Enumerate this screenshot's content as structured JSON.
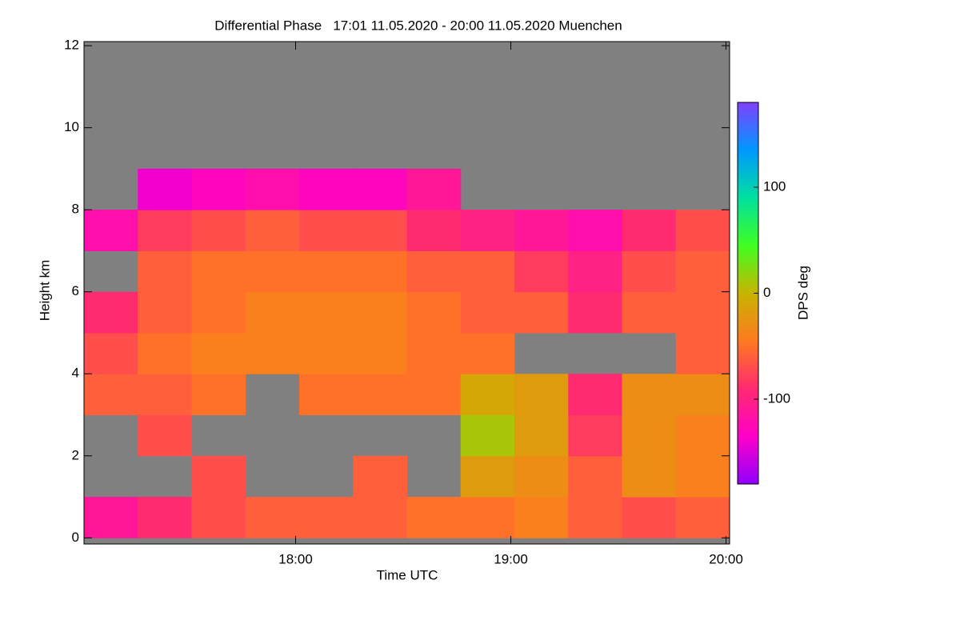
{
  "chart_data": {
    "type": "heatmap",
    "title": "Differential Phase   17:01 11.05.2020 - 20:00 11.05.2020 Muenchen",
    "xlabel": "Time UTC",
    "ylabel": "Height km",
    "colorbar_label": "DPS deg",
    "x": [
      1021,
      1036,
      1051,
      1066,
      1081,
      1096,
      1111,
      1126,
      1141,
      1156,
      1171,
      1186
    ],
    "y": [
      0,
      1,
      2,
      3,
      4,
      5,
      6,
      7,
      8,
      9,
      10,
      11
    ],
    "values": [
      [
        -110,
        -90,
        -70,
        -60,
        -60,
        -60,
        -50,
        -50,
        -40,
        -60,
        -70,
        -60
      ],
      [
        null,
        null,
        -70,
        null,
        null,
        -60,
        null,
        -20,
        -30,
        -60,
        -30,
        -40
      ],
      [
        null,
        -70,
        null,
        null,
        null,
        null,
        null,
        10,
        -20,
        -80,
        -30,
        -40
      ],
      [
        -60,
        -60,
        -50,
        null,
        -50,
        -50,
        -50,
        -10,
        -20,
        -90,
        -30,
        -30
      ],
      [
        -70,
        -50,
        -40,
        -40,
        -40,
        -40,
        -50,
        -50,
        null,
        null,
        null,
        -60
      ],
      [
        -90,
        -60,
        -50,
        -40,
        -40,
        -40,
        -50,
        -60,
        -60,
        -90,
        -60,
        -60
      ],
      [
        null,
        -60,
        -50,
        -50,
        -50,
        -50,
        -60,
        -60,
        -80,
        -100,
        -70,
        -60
      ],
      [
        -120,
        -80,
        -70,
        -60,
        -70,
        -70,
        -90,
        -100,
        -110,
        -120,
        -90,
        -70
      ],
      [
        null,
        -140,
        -130,
        -120,
        -130,
        -130,
        -110,
        null,
        null,
        null,
        null,
        null
      ],
      [
        null,
        null,
        null,
        null,
        null,
        null,
        null,
        null,
        null,
        null,
        null,
        null
      ],
      [
        null,
        null,
        null,
        null,
        null,
        null,
        null,
        null,
        null,
        null,
        null,
        null
      ],
      [
        null,
        null,
        null,
        null,
        null,
        null,
        null,
        null,
        null,
        null,
        null,
        null
      ]
    ],
    "xlim": [
      1021,
      1201
    ],
    "xticks": [
      {
        "value": 1080,
        "label": "18:00"
      },
      {
        "value": 1140,
        "label": "19:00"
      },
      {
        "value": 1200,
        "label": "20:00"
      }
    ],
    "ylim": [
      -0.15,
      12.1
    ],
    "yticks": [
      0,
      2,
      4,
      6,
      8,
      10,
      12
    ],
    "zlim": [
      -180,
      180
    ],
    "zticks": [
      -100,
      0,
      100
    ],
    "missing_color": "#808080",
    "colormap": [
      "#9000ff",
      "#ff00c8",
      "#ff2a70",
      "#ff7a20",
      "#c8b400",
      "#40ff20",
      "#00e0a0",
      "#0098ff",
      "#8040ff"
    ]
  }
}
